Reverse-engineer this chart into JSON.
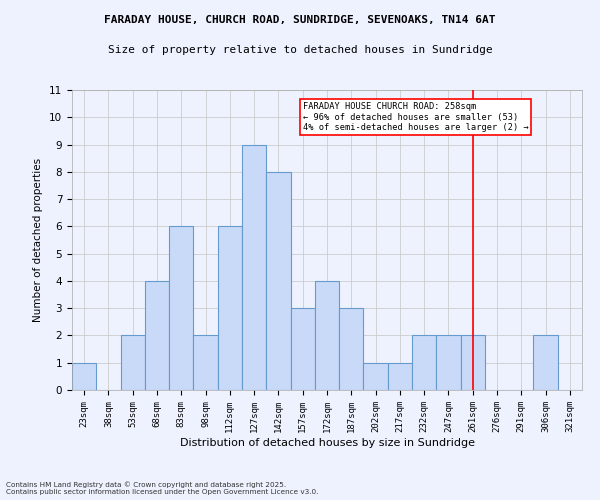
{
  "title1": "FARADAY HOUSE, CHURCH ROAD, SUNDRIDGE, SEVENOAKS, TN14 6AT",
  "title2": "Size of property relative to detached houses in Sundridge",
  "xlabel": "Distribution of detached houses by size in Sundridge",
  "ylabel": "Number of detached properties",
  "categories": [
    "23sqm",
    "38sqm",
    "53sqm",
    "68sqm",
    "83sqm",
    "98sqm",
    "112sqm",
    "127sqm",
    "142sqm",
    "157sqm",
    "172sqm",
    "187sqm",
    "202sqm",
    "217sqm",
    "232sqm",
    "247sqm",
    "261sqm",
    "276sqm",
    "291sqm",
    "306sqm",
    "321sqm"
  ],
  "values": [
    1,
    0,
    2,
    4,
    6,
    2,
    6,
    9,
    8,
    3,
    4,
    3,
    1,
    1,
    2,
    2,
    2,
    0,
    0,
    2,
    0
  ],
  "bar_color": "#c9daf8",
  "bar_edge_color": "#6699cc",
  "grid_color": "#cccccc",
  "background_color": "#eef2ff",
  "red_line_index": 16,
  "annotation_title": "FARADAY HOUSE CHURCH ROAD: 258sqm",
  "annotation_line1": "← 96% of detached houses are smaller (53)",
  "annotation_line2": "4% of semi-detached houses are larger (2) →",
  "footer1": "Contains HM Land Registry data © Crown copyright and database right 2025.",
  "footer2": "Contains public sector information licensed under the Open Government Licence v3.0.",
  "ylim": [
    0,
    11
  ],
  "yticks": [
    0,
    1,
    2,
    3,
    4,
    5,
    6,
    7,
    8,
    9,
    10,
    11
  ]
}
